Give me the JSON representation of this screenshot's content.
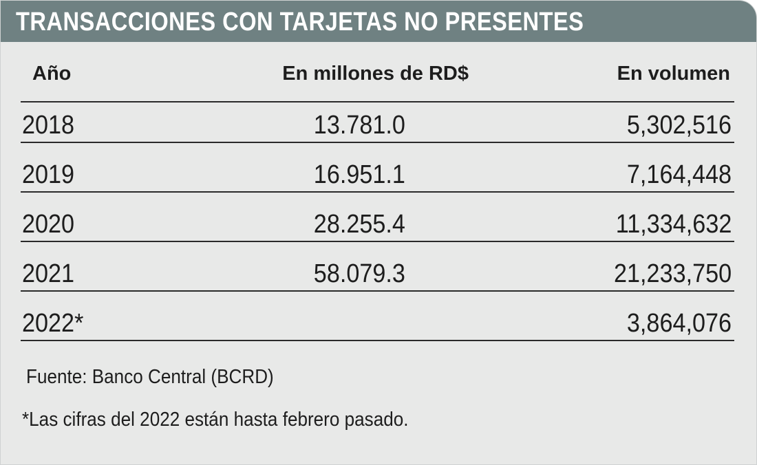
{
  "title": "TRANSACCIONES CON TARJETAS NO PRESENTES",
  "headers": {
    "year": "Año",
    "amount": "En millones de RD$",
    "volume": "En volumen"
  },
  "rows": [
    {
      "year": "2018",
      "amount": "13.781.0",
      "volume": "5,302,516"
    },
    {
      "year": "2019",
      "amount": "16.951.1",
      "volume": "7,164,448"
    },
    {
      "year": "2020",
      "amount": "28.255.4",
      "volume": "11,334,632"
    },
    {
      "year": "2021",
      "amount": "58.079.3",
      "volume": "21,233,750"
    },
    {
      "year": "2022*",
      "amount": "",
      "volume": "3,864,076"
    }
  ],
  "source": "Fuente: Banco Central (BCRD)",
  "footnote": "*Las cifras del 2022 están hasta febrero pasado.",
  "colors": {
    "title_bar": "#6f8182",
    "background": "#e8e9e8",
    "text": "#1d1d1d",
    "rule": "#2a2a2a"
  },
  "chart_data": {
    "type": "table",
    "title": "TRANSACCIONES CON TARJETAS NO PRESENTES",
    "columns": [
      "Año",
      "En millones de RD$",
      "En volumen"
    ],
    "rows": [
      [
        "2018",
        "13.781.0",
        "5,302,516"
      ],
      [
        "2019",
        "16.951.1",
        "7,164,448"
      ],
      [
        "2020",
        "28.255.4",
        "11,334,632"
      ],
      [
        "2021",
        "58.079.3",
        "21,233,750"
      ],
      [
        "2022*",
        "",
        "3,864,076"
      ]
    ]
  }
}
